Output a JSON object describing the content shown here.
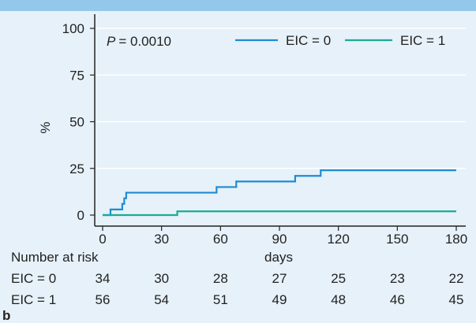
{
  "chart_data": {
    "type": "line",
    "title": "",
    "xlabel": "days",
    "ylabel": "%",
    "xlim": [
      0,
      180
    ],
    "ylim": [
      0,
      100
    ],
    "x_ticks": [
      "0",
      "30",
      "60",
      "90",
      "120",
      "150",
      "180"
    ],
    "y_ticks": [
      "0",
      "25",
      "50",
      "75",
      "100"
    ],
    "grid": "horizontal",
    "legend_position": "top-right",
    "annotation": {
      "p_symbol": "P",
      "p_value": "= 0.0010"
    },
    "series": [
      {
        "name": "EIC = 0",
        "color": "#1f8bd2",
        "step": true,
        "x": [
          0,
          4,
          10,
          11,
          12,
          58,
          68,
          98,
          111,
          180
        ],
        "y": [
          0,
          3,
          6,
          9,
          12,
          15,
          18,
          21,
          24,
          24
        ]
      },
      {
        "name": "EIC = 1",
        "color": "#1aaa96",
        "step": true,
        "x": [
          0,
          38,
          180
        ],
        "y": [
          0,
          2,
          2
        ]
      }
    ]
  },
  "risk_table": {
    "header": "Number at risk",
    "rows": [
      {
        "label": "EIC = 0",
        "values": [
          "34",
          "30",
          "28",
          "27",
          "25",
          "23",
          "22"
        ]
      },
      {
        "label": "EIC = 1",
        "values": [
          "56",
          "54",
          "51",
          "49",
          "48",
          "46",
          "45"
        ]
      }
    ]
  },
  "panel_label": "b"
}
